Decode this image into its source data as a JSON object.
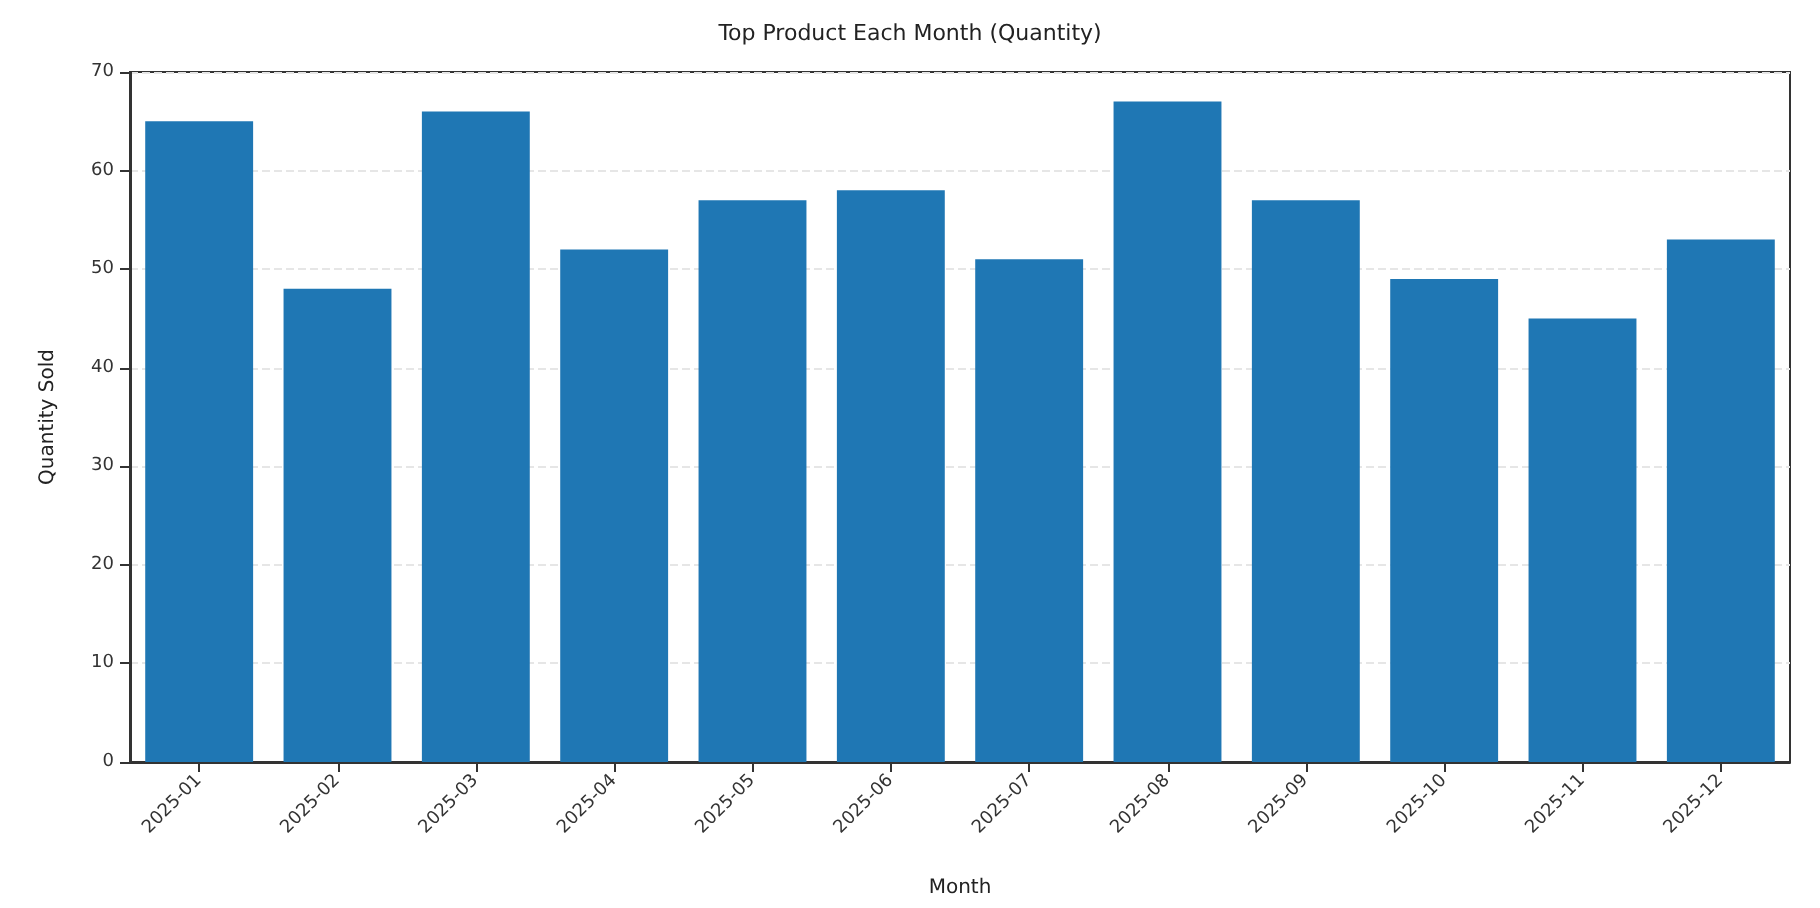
{
  "chart_data": {
    "type": "bar",
    "title": "Top Product Each Month (Quantity)",
    "xlabel": "Month",
    "ylabel": "Quantity Sold",
    "categories": [
      "2025-01",
      "2025-02",
      "2025-03",
      "2025-04",
      "2025-05",
      "2025-06",
      "2025-07",
      "2025-08",
      "2025-09",
      "2025-10",
      "2025-11",
      "2025-12"
    ],
    "values": [
      65,
      48,
      66,
      52,
      57,
      58,
      51,
      67,
      57,
      49,
      45,
      53
    ],
    "color": "#1f77b4",
    "ylim": [
      0,
      70
    ],
    "yticks": [
      0,
      10,
      20,
      30,
      40,
      50,
      60,
      70
    ],
    "grid": "y"
  }
}
